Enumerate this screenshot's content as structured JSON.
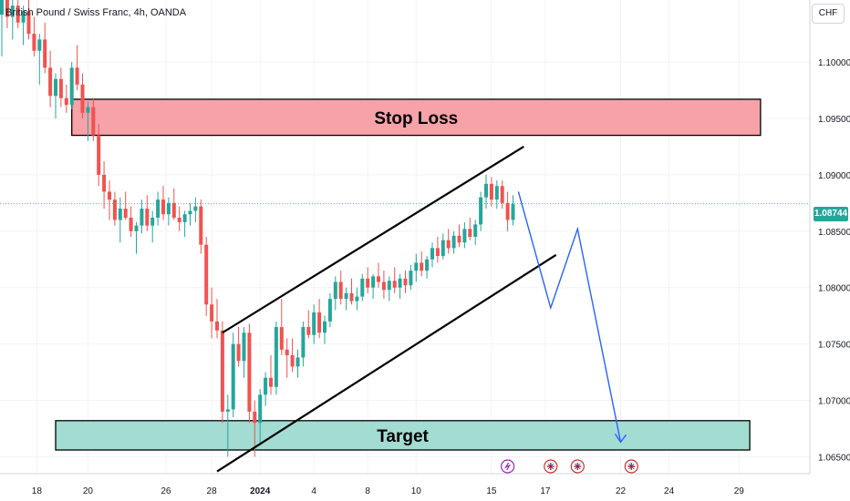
{
  "header": {
    "title": "British Pound / Swiss Franc, 4h, OANDA"
  },
  "currency_button": "CHF",
  "current_price_label": "1.08744",
  "colors": {
    "up": "#26a69a",
    "down": "#ef5350",
    "stop_zone": "#f7a1a8",
    "target_zone": "#a3dcd2",
    "projection": "#2962ff",
    "channel": "#000000"
  },
  "chart_data": {
    "type": "candlestick",
    "title": "British Pound / Swiss Franc, 4h, OANDA",
    "ylim": [
      1.0635,
      1.1055
    ],
    "y_ticks": [
      "1.10000",
      "1.09500",
      "1.09000",
      "1.08500",
      "1.08000",
      "1.07500",
      "1.07000",
      "1.06500"
    ],
    "y_tick_values": [
      1.1,
      1.095,
      1.09,
      1.085,
      1.08,
      1.075,
      1.07,
      1.065
    ],
    "x_ticks": [
      "18",
      "20",
      "26",
      "28",
      "2024",
      "4",
      "8",
      "10",
      "15",
      "17",
      "22",
      "24",
      "29"
    ],
    "x_tick_index": [
      6.5,
      16,
      30.5,
      39,
      48,
      58,
      68,
      77,
      91,
      101,
      115,
      124,
      137
    ],
    "last_price": 1.08744,
    "candles": [
      [
        1.1042,
        1.1065,
        1.1005,
        1.1055
      ],
      [
        1.1055,
        1.107,
        1.103,
        1.104
      ],
      [
        1.104,
        1.106,
        1.102,
        1.105
      ],
      [
        1.105,
        1.1065,
        1.103,
        1.1035
      ],
      [
        1.1035,
        1.105,
        1.1015,
        1.1045
      ],
      [
        1.1045,
        1.1058,
        1.102,
        1.1025
      ],
      [
        1.1025,
        1.104,
        1.1005,
        1.101
      ],
      [
        1.101,
        1.1025,
        1.098,
        1.102
      ],
      [
        1.102,
        1.1035,
        1.099,
        1.0995
      ],
      [
        1.0995,
        1.101,
        1.096,
        1.097
      ],
      [
        1.097,
        1.099,
        1.095,
        1.0985
      ],
      [
        1.0985,
        1.0995,
        1.096,
        1.0968
      ],
      [
        1.0968,
        1.098,
        1.0955,
        1.0962
      ],
      [
        1.0962,
        1.1,
        1.0958,
        1.0995
      ],
      [
        1.0995,
        1.1015,
        1.0975,
        1.098
      ],
      [
        1.098,
        1.099,
        1.095,
        1.0955
      ],
      [
        1.0955,
        1.0965,
        1.093,
        1.096
      ],
      [
        1.096,
        1.0968,
        1.093,
        1.0935
      ],
      [
        1.0935,
        1.0945,
        1.089,
        1.09
      ],
      [
        1.09,
        1.0912,
        1.087,
        1.0885
      ],
      [
        1.0885,
        1.0895,
        1.086,
        1.0878
      ],
      [
        1.0878,
        1.0885,
        1.0855,
        1.086
      ],
      [
        1.086,
        1.088,
        1.084,
        1.087
      ],
      [
        1.087,
        1.0885,
        1.086,
        1.0862
      ],
      [
        1.0862,
        1.0872,
        1.0845,
        1.085
      ],
      [
        1.085,
        1.0858,
        1.083,
        1.0855
      ],
      [
        1.0855,
        1.0878,
        1.0848,
        1.087
      ],
      [
        1.087,
        1.0882,
        1.085,
        1.0855
      ],
      [
        1.0855,
        1.0868,
        1.084,
        1.0862
      ],
      [
        1.0862,
        1.0885,
        1.0855,
        1.0878
      ],
      [
        1.0878,
        1.089,
        1.086,
        1.0865
      ],
      [
        1.0865,
        1.088,
        1.0855,
        1.0875
      ],
      [
        1.0875,
        1.0888,
        1.086,
        1.0862
      ],
      [
        1.0862,
        1.0872,
        1.085,
        1.0858
      ],
      [
        1.0858,
        1.0868,
        1.0845,
        1.0865
      ],
      [
        1.0865,
        1.0875,
        1.0855,
        1.0868
      ],
      [
        1.0868,
        1.088,
        1.0858,
        1.0872
      ],
      [
        1.0872,
        1.0878,
        1.083,
        1.0838
      ],
      [
        1.0838,
        1.0845,
        1.0775,
        1.0785
      ],
      [
        1.0785,
        1.08,
        1.0755,
        1.077
      ],
      [
        1.077,
        1.079,
        1.0755,
        1.0762
      ],
      [
        1.0762,
        1.077,
        1.068,
        1.069
      ],
      [
        1.069,
        1.0705,
        1.065,
        1.0692
      ],
      [
        1.0692,
        1.076,
        1.0685,
        1.075
      ],
      [
        1.075,
        1.0765,
        1.073,
        1.0735
      ],
      [
        1.0735,
        1.0765,
        1.072,
        1.076
      ],
      [
        1.076,
        1.0768,
        1.068,
        1.069
      ],
      [
        1.069,
        1.07,
        1.065,
        1.068
      ],
      [
        1.068,
        1.071,
        1.066,
        1.0705
      ],
      [
        1.0705,
        1.0725,
        1.0695,
        1.072
      ],
      [
        1.072,
        1.074,
        1.0705,
        1.0712
      ],
      [
        1.0712,
        1.077,
        1.0705,
        1.0765
      ],
      [
        1.0765,
        1.079,
        1.074,
        1.0745
      ],
      [
        1.0745,
        1.0755,
        1.072,
        1.074
      ],
      [
        1.074,
        1.0755,
        1.0725,
        1.073
      ],
      [
        1.073,
        1.0745,
        1.072,
        1.0738
      ],
      [
        1.0738,
        1.077,
        1.073,
        1.0765
      ],
      [
        1.0765,
        1.078,
        1.0755,
        1.0758
      ],
      [
        1.0758,
        1.0785,
        1.075,
        1.0778
      ],
      [
        1.0778,
        1.079,
        1.0755,
        1.076
      ],
      [
        1.076,
        1.0775,
        1.075,
        1.077
      ],
      [
        1.077,
        1.0795,
        1.0765,
        1.079
      ],
      [
        1.079,
        1.081,
        1.078,
        1.0805
      ],
      [
        1.0805,
        1.0815,
        1.0785,
        1.079
      ],
      [
        1.079,
        1.08,
        1.078,
        1.0795
      ],
      [
        1.0795,
        1.0808,
        1.0785,
        1.0788
      ],
      [
        1.0788,
        1.08,
        1.078,
        1.0792
      ],
      [
        1.0792,
        1.0812,
        1.0788,
        1.0808
      ],
      [
        1.0808,
        1.0818,
        1.0795,
        1.08
      ],
      [
        1.08,
        1.0812,
        1.079,
        1.081
      ],
      [
        1.081,
        1.0822,
        1.08,
        1.0805
      ],
      [
        1.0805,
        1.0815,
        1.079,
        1.0798
      ],
      [
        1.0798,
        1.081,
        1.0788,
        1.0806
      ],
      [
        1.0806,
        1.0818,
        1.0795,
        1.08
      ],
      [
        1.08,
        1.0812,
        1.079,
        1.0808
      ],
      [
        1.0808,
        1.0815,
        1.0795,
        1.0802
      ],
      [
        1.0802,
        1.082,
        1.0798,
        1.0815
      ],
      [
        1.0815,
        1.083,
        1.0805,
        1.0822
      ],
      [
        1.0822,
        1.0832,
        1.081,
        1.0815
      ],
      [
        1.0815,
        1.0828,
        1.0808,
        1.0825
      ],
      [
        1.0825,
        1.084,
        1.0818,
        1.0835
      ],
      [
        1.0835,
        1.0845,
        1.0822,
        1.0828
      ],
      [
        1.0828,
        1.0848,
        1.0825,
        1.0842
      ],
      [
        1.0842,
        1.0852,
        1.083,
        1.0835
      ],
      [
        1.0835,
        1.085,
        1.083,
        1.0846
      ],
      [
        1.0846,
        1.0856,
        1.0836,
        1.084
      ],
      [
        1.084,
        1.0858,
        1.0835,
        1.0852
      ],
      [
        1.0852,
        1.0862,
        1.0842,
        1.0845
      ],
      [
        1.0845,
        1.086,
        1.0838,
        1.0856
      ],
      [
        1.0856,
        1.0885,
        1.085,
        1.088
      ],
      [
        1.088,
        1.09,
        1.087,
        1.0892
      ],
      [
        1.0892,
        1.0898,
        1.0872,
        1.0878
      ],
      [
        1.0878,
        1.0895,
        1.087,
        1.089
      ],
      [
        1.089,
        1.0895,
        1.087,
        1.0875
      ],
      [
        1.0875,
        1.0885,
        1.085,
        1.086
      ],
      [
        1.086,
        1.0882,
        1.0855,
        1.0874
      ]
    ]
  },
  "annotations": {
    "stop_loss": {
      "label": "Stop Loss",
      "from_index": 13,
      "to_index": 141,
      "top_price": 1.0967,
      "bottom_price": 1.0935
    },
    "target": {
      "label": "Target",
      "from_index": 10,
      "to_index": 139,
      "top_price": 1.0682,
      "bottom_price": 1.0656
    },
    "channel_upper": [
      [
        41,
        1.076
      ],
      [
        97,
        1.0925
      ]
    ],
    "channel_lower": [
      [
        40,
        1.0637
      ],
      [
        103,
        1.0829
      ]
    ],
    "projection": [
      [
        96,
        1.0885
      ],
      [
        102,
        1.0782
      ],
      [
        107,
        1.0852
      ],
      [
        115,
        1.0663
      ]
    ],
    "event_markers": [
      [
        94,
        "lightning"
      ],
      [
        102,
        "flag-uk"
      ],
      [
        107,
        "flag-uk"
      ],
      [
        117,
        "flag-uk"
      ]
    ]
  }
}
